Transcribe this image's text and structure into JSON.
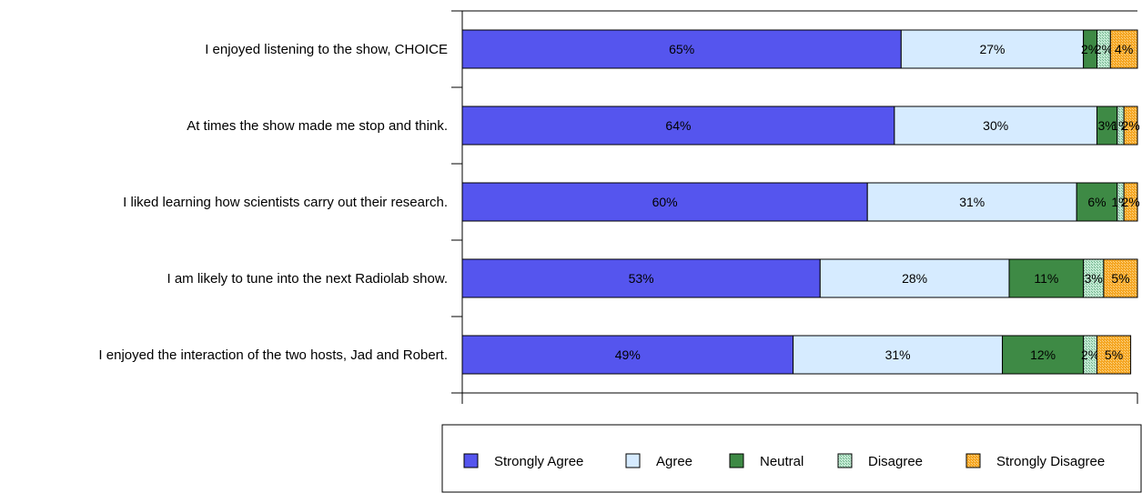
{
  "chart_data": {
    "type": "bar",
    "orientation": "horizontal",
    "stacked": "percent",
    "categories": [
      "I enjoyed listening to the show, CHOICE",
      "At times the show made me stop and think.",
      "I liked learning how scientists carry out their research.",
      "I am likely to tune into the next Radiolab show.",
      "I enjoyed the interaction of the two hosts, Jad and Robert."
    ],
    "series": [
      {
        "name": "Strongly Agree",
        "color": "#5555ee",
        "values": [
          65,
          64,
          60,
          53,
          49
        ],
        "labels": [
          "65%",
          "64%",
          "60%",
          "53%",
          "49%"
        ]
      },
      {
        "name": "Agree",
        "color": "#d6ebff",
        "values": [
          27,
          30,
          31,
          28,
          31
        ],
        "labels": [
          "27%",
          "30%",
          "31%",
          "28%",
          "31%"
        ]
      },
      {
        "name": "Neutral",
        "color": "#3e8a45",
        "values": [
          2,
          3,
          6,
          11,
          12
        ],
        "labels": [
          "2%",
          "3%",
          "6%",
          "11%",
          "12%"
        ]
      },
      {
        "name": "Disagree",
        "color": "#a9dcc0",
        "values": [
          2,
          1,
          1,
          3,
          2
        ],
        "labels": [
          "2%",
          "1%",
          "1%",
          "3%",
          "2%"
        ]
      },
      {
        "name": "Strongly Disagree",
        "color": "#f5a623",
        "values": [
          4,
          2,
          2,
          5,
          5
        ],
        "labels": [
          "4%",
          "2%",
          "2%",
          "5%",
          "5%"
        ]
      }
    ],
    "xlim": [
      0,
      100
    ],
    "grid": false,
    "legend_position": "bottom"
  }
}
